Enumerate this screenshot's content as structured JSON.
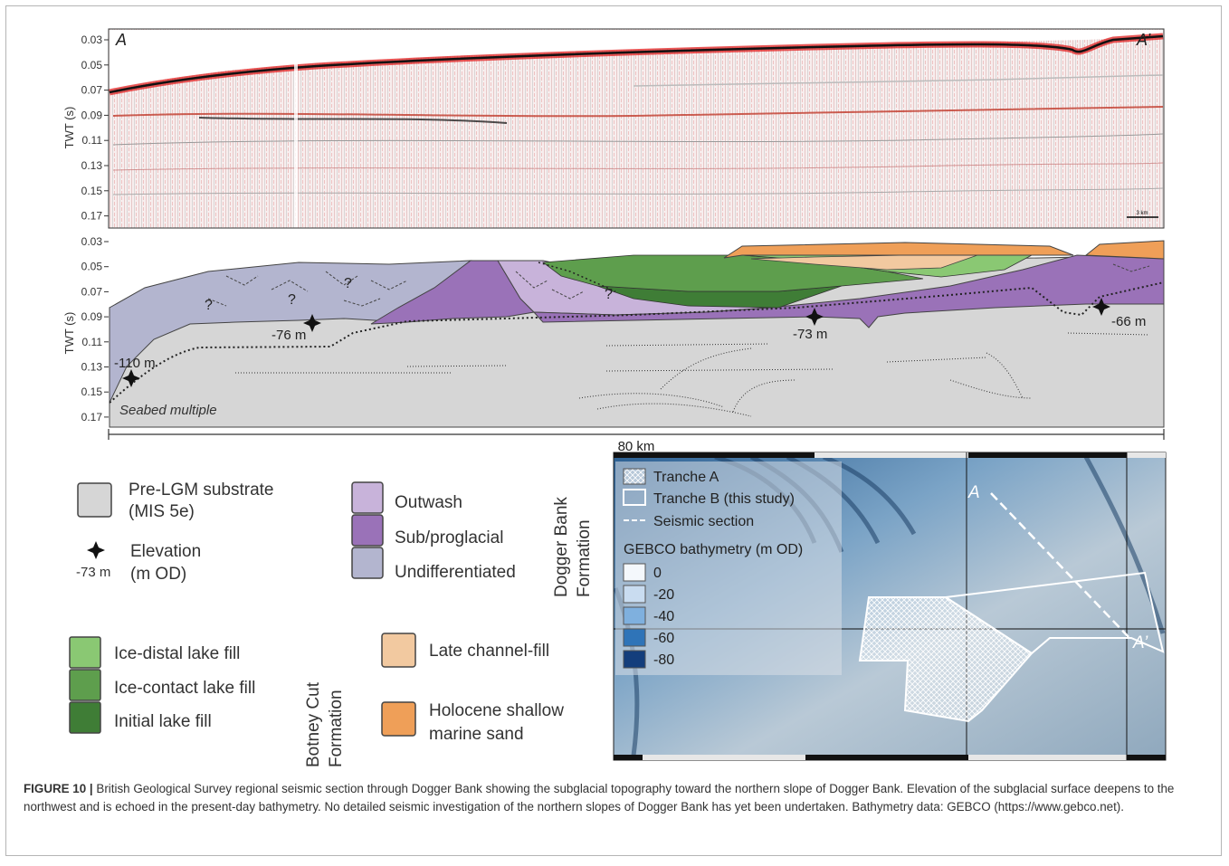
{
  "seismic_panel": {
    "left_label": "A",
    "right_label": "A’",
    "y_axis_label": "TWT (s)",
    "y_ticks": [
      "0.03",
      "0.05",
      "0.07",
      "0.09",
      "0.11",
      "0.13",
      "0.15",
      "0.17"
    ],
    "scale_bar": "3 km"
  },
  "interpretation_panel": {
    "y_axis_label": "TWT (s)",
    "y_ticks": [
      "0.03",
      "0.05",
      "0.07",
      "0.09",
      "0.11",
      "0.13",
      "0.15",
      "0.17"
    ],
    "elevations": [
      "-110 m",
      "-76 m",
      "-73 m",
      "-66 m"
    ],
    "question_mark": "?",
    "seabed_multiple": "Seabed multiple",
    "scale": "80 km"
  },
  "legend": {
    "pre_lgm": "Pre-LGM substrate",
    "pre_lgm_sub": "(MIS 5e)",
    "elevation": "Elevation",
    "elevation_sub": "(m OD)",
    "elevation_example": "-73 m",
    "outwash": "Outwash",
    "subproglacial": "Sub/proglacial",
    "undifferentiated": "Undifferentiated",
    "dogger_formation_1": "Dogger Bank",
    "dogger_formation_2": "Formation",
    "ice_distal": "Ice-distal lake fill",
    "ice_contact": "Ice-contact lake fill",
    "initial": "Initial lake fill",
    "botney_formation_1": "Botney Cut",
    "botney_formation_2": "Formation",
    "late_channel": "Late channel-fill",
    "holocene_1": "Holocene shallow",
    "holocene_2": "marine sand",
    "colors": {
      "pre_lgm": "#d6d6d6",
      "outwash": "#c8b3da",
      "subproglacial": "#9a72b8",
      "undifferentiated": "#b3b5cf",
      "ice_distal": "#8ac873",
      "ice_contact": "#5e9e4d",
      "initial": "#3f7d36",
      "late_channel": "#f2c9a0",
      "holocene": "#ef9f58"
    }
  },
  "map": {
    "tranche_a": "Tranche A",
    "tranche_b": "Tranche B (this study)",
    "seismic_section": "Seismic section",
    "bathy_title": "GEBCO bathymetry (m OD)",
    "bathy_values": [
      "0",
      "-20",
      "-40",
      "-60",
      "-80"
    ],
    "bathy_colors": [
      "#f4f8fc",
      "#c9dcf0",
      "#7fb0de",
      "#2f74b8",
      "#143e7c"
    ],
    "label_a": "A",
    "label_a_prime": "A’"
  },
  "caption": {
    "label": "FIGURE 10 |",
    "text": " British Geological Survey regional seismic section through Dogger Bank showing the subglacial topography toward the northern slope of Dogger Bank. Elevation of the subglacial surface deepens to the northwest and is echoed in the present-day bathymetry. No detailed seismic investigation of the northern slopes of Dogger Bank has yet been undertaken. Bathymetry data: GEBCO (https://www.gebco.net)."
  }
}
